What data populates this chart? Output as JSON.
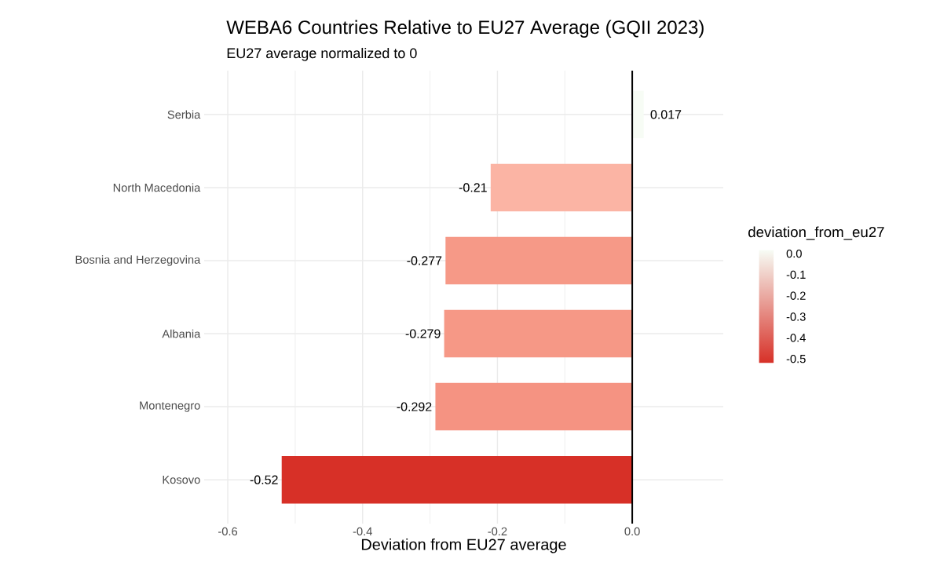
{
  "chart_data": {
    "type": "bar",
    "orientation": "horizontal",
    "title": "WEBA6 Countries Relative to EU27 Average (GQII 2023)",
    "subtitle": "EU27 average normalized to 0",
    "xlabel": "Deviation from EU27 average",
    "clabel": "deviation_from_eu27",
    "categories": [
      "Serbia",
      "North Macedonia",
      "Bosnia and Herzegovina",
      "Albania",
      "Montenegro",
      "Kosovo"
    ],
    "values": [
      0.017,
      -0.21,
      -0.277,
      -0.279,
      -0.292,
      -0.52
    ],
    "colors": [
      "#f7fcf5",
      "#fbb4a4",
      "#f69987",
      "#f69886",
      "#f59382",
      "#d73027"
    ],
    "data_labels": true,
    "xlim": [
      -0.635,
      0.135
    ],
    "xticks": [
      -0.6,
      -0.4,
      -0.2,
      {
        "value": 0,
        "label": "0.0"
      }
    ],
    "clim": [
      -0.52,
      0.017
    ],
    "cticks": [
      {
        "value": 0,
        "label": "0.0"
      },
      -0.1,
      -0.2,
      -0.3,
      -0.4,
      -0.5
    ],
    "ref_lines": [
      {
        "axis": "x",
        "value": 0,
        "color": "#000000"
      }
    ],
    "grid": true
  }
}
